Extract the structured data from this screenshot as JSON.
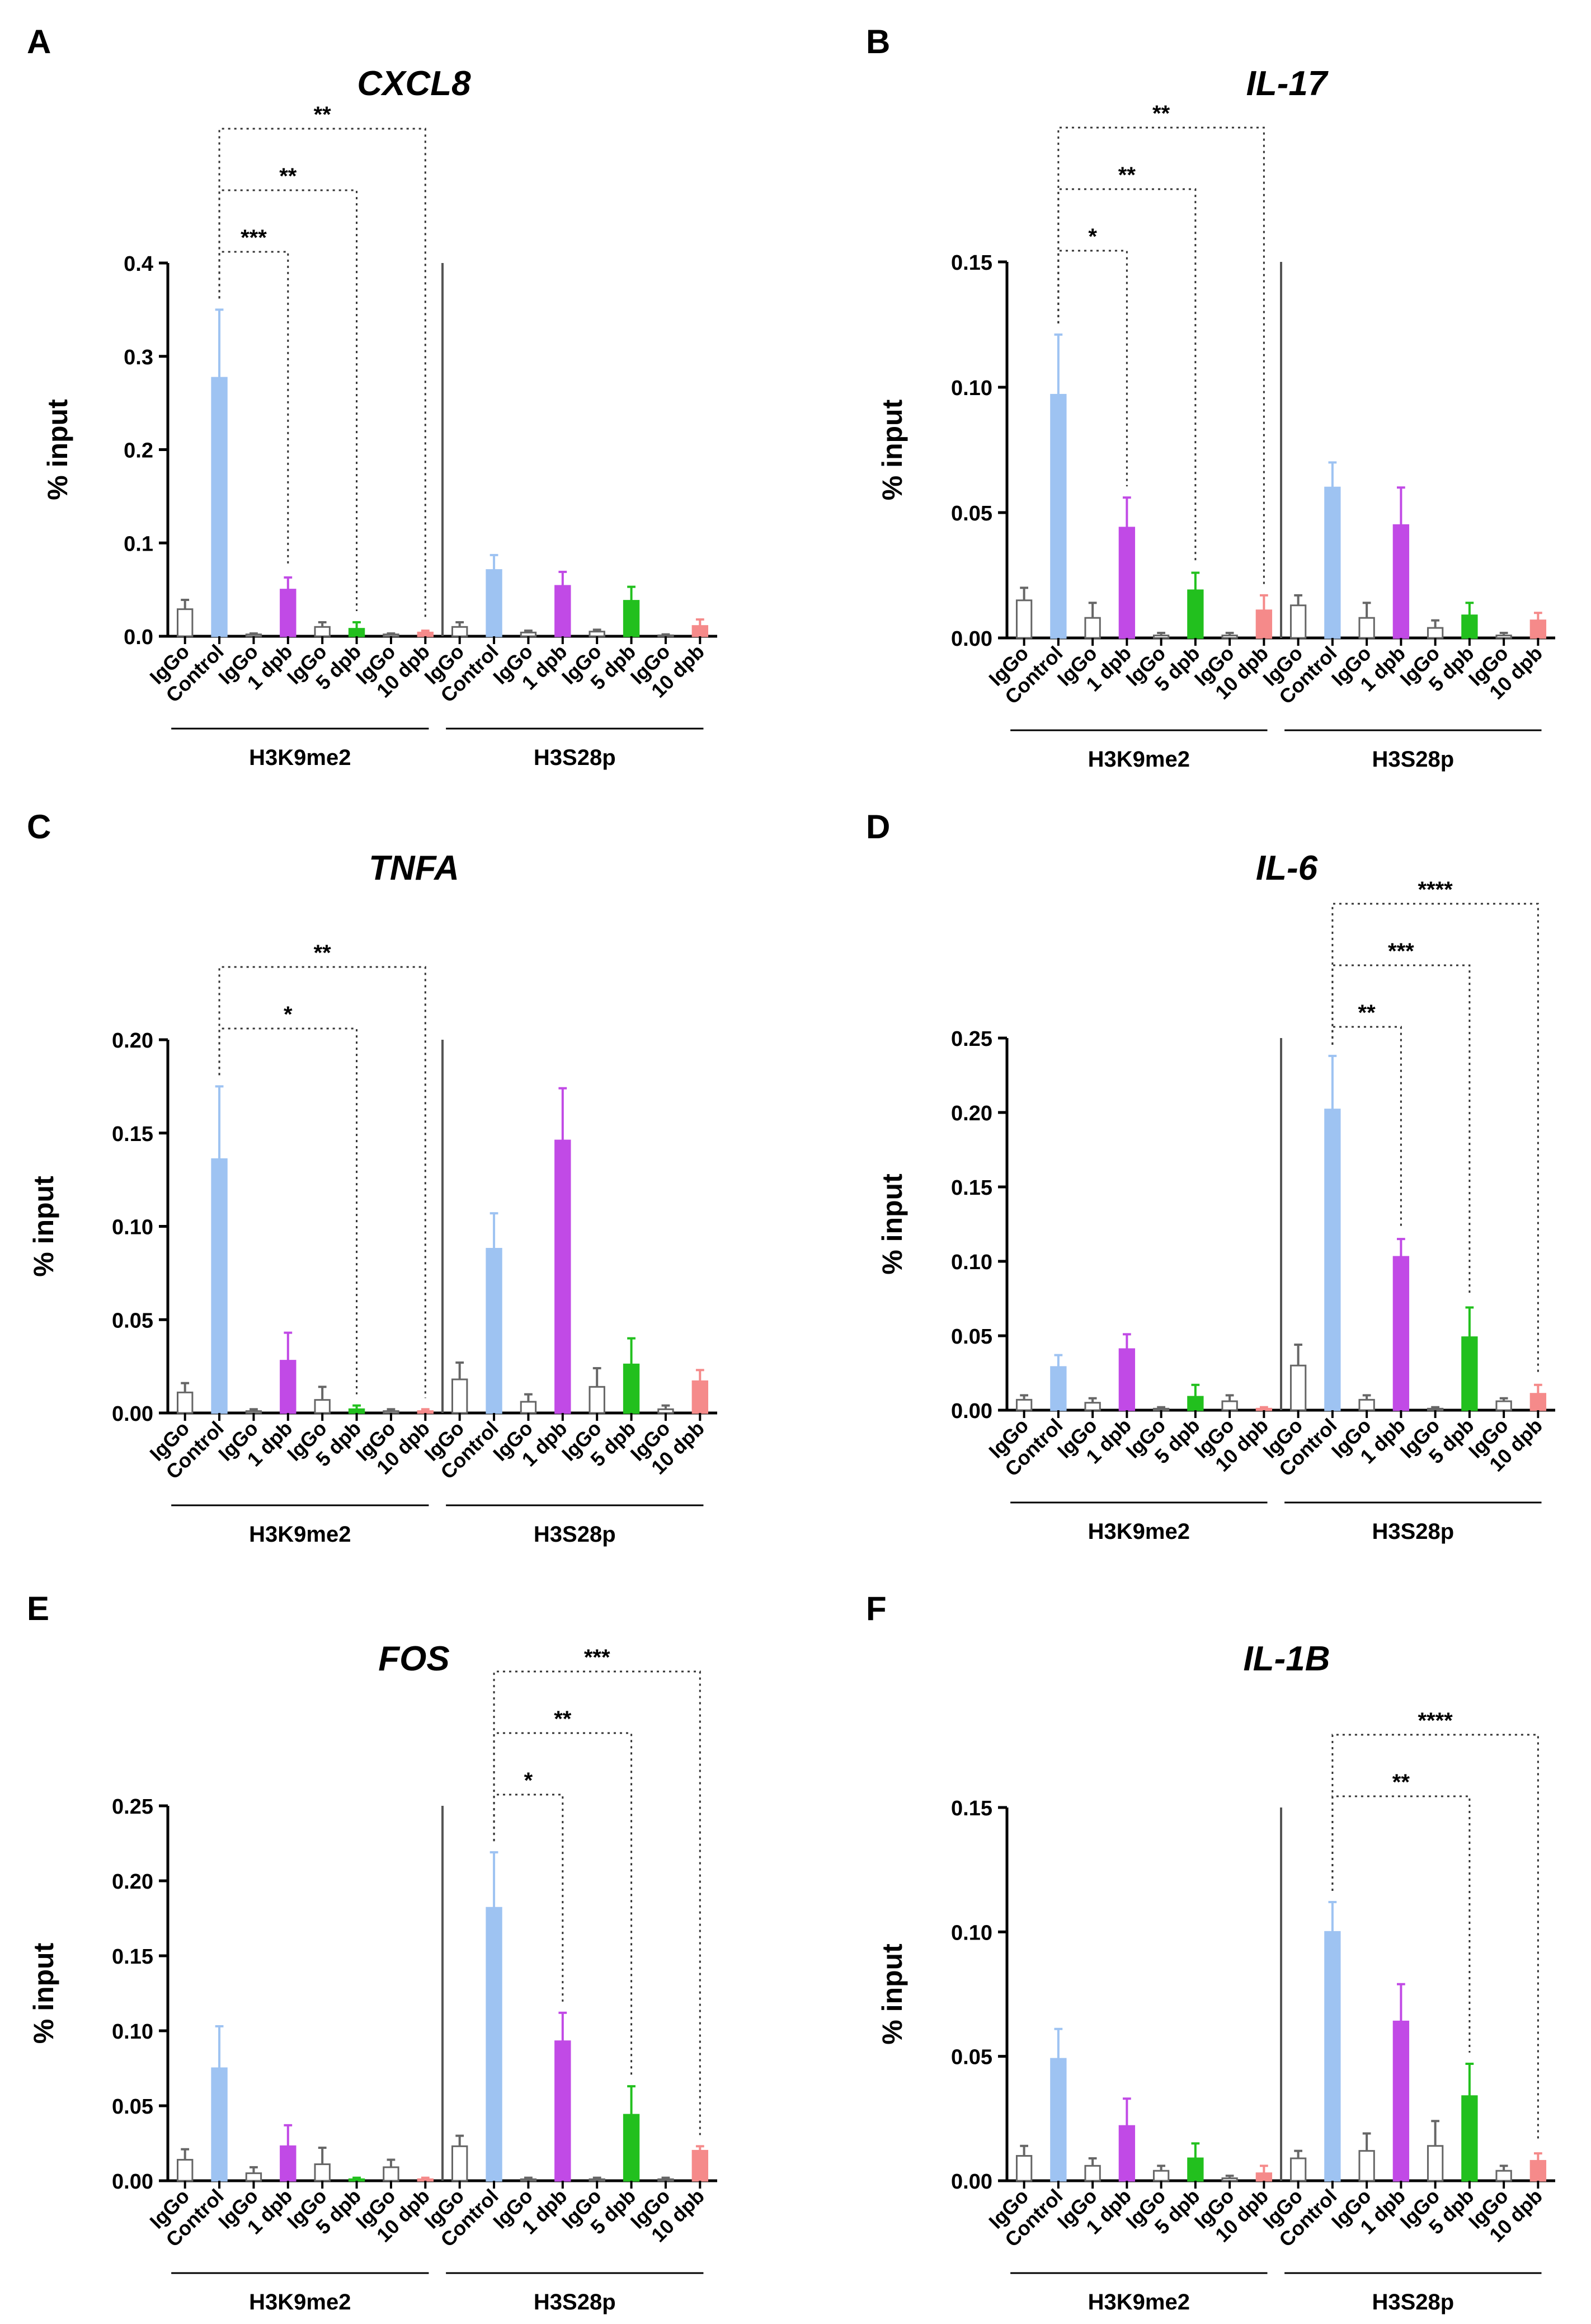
{
  "figure": {
    "category_labels": [
      [
        "IgGo",
        "Control"
      ],
      [
        "IgGo",
        "1 dpb"
      ],
      [
        "IgGo",
        "5 dpb"
      ],
      [
        "IgGo",
        "10 dpb"
      ],
      [
        "IgGo",
        "Control"
      ],
      [
        "IgGo",
        "1 dpb"
      ],
      [
        "IgGo",
        "5 dpb"
      ],
      [
        "IgGo",
        "10 dpb"
      ]
    ],
    "colors": {
      "control": "#9ec3f2",
      "dpb1": "#c14ae6",
      "dpb5": "#22c01e",
      "dpb10": "#f58a8a",
      "igg": "#ffffff",
      "axis": "#000000"
    }
  },
  "chart_data": [
    {
      "panel": "A",
      "title": "CXCL8",
      "type": "bar",
      "ylabel": "% input",
      "ylim": [
        0,
        0.4
      ],
      "yticks": [
        "0.0",
        "0.1",
        "0.2",
        "0.3",
        "0.4"
      ],
      "groups": [
        "H3K9me2",
        "H3S28p"
      ],
      "series": [
        {
          "name": "H3K9me2",
          "values": [
            0.029,
            0.277,
            0.002,
            0.05,
            0.01,
            0.008,
            0.002,
            0.004
          ],
          "errors": [
            0.01,
            0.073,
            0.001,
            0.013,
            0.005,
            0.007,
            0.001,
            0.002
          ]
        },
        {
          "name": "H3S28p",
          "values": [
            0.01,
            0.071,
            0.004,
            0.054,
            0.005,
            0.038,
            0.001,
            0.011
          ],
          "errors": [
            0.005,
            0.016,
            0.002,
            0.015,
            0.002,
            0.015,
            0.001,
            0.007
          ]
        }
      ],
      "significance": [
        {
          "group": 0,
          "to": "1 dpb",
          "label": "***"
        },
        {
          "group": 0,
          "to": "5 dpb",
          "label": "**"
        },
        {
          "group": 0,
          "to": "10 dpb",
          "label": "**"
        }
      ]
    },
    {
      "panel": "B",
      "title": "IL-17",
      "type": "bar",
      "ylabel": "% input",
      "ylim": [
        0,
        0.15
      ],
      "yticks": [
        "0.00",
        "0.05",
        "0.10",
        "0.15"
      ],
      "groups": [
        "H3K9me2",
        "H3S28p"
      ],
      "series": [
        {
          "name": "H3K9me2",
          "values": [
            0.015,
            0.097,
            0.008,
            0.044,
            0.001,
            0.019,
            0.001,
            0.011
          ],
          "errors": [
            0.005,
            0.024,
            0.006,
            0.012,
            0.001,
            0.007,
            0.001,
            0.006
          ]
        },
        {
          "name": "H3S28p",
          "values": [
            0.013,
            0.06,
            0.008,
            0.045,
            0.004,
            0.009,
            0.001,
            0.007
          ],
          "errors": [
            0.004,
            0.01,
            0.006,
            0.015,
            0.003,
            0.005,
            0.001,
            0.003
          ]
        }
      ],
      "significance": [
        {
          "group": 0,
          "to": "1 dpb",
          "label": "*"
        },
        {
          "group": 0,
          "to": "5 dpb",
          "label": "**"
        },
        {
          "group": 0,
          "to": "10 dpb",
          "label": "**"
        }
      ]
    },
    {
      "panel": "C",
      "title": "TNFA",
      "type": "bar",
      "ylabel": "% input",
      "ylim": [
        0,
        0.2
      ],
      "yticks": [
        "0.00",
        "0.05",
        "0.10",
        "0.15",
        "0.20"
      ],
      "groups": [
        "H3K9me2",
        "H3S28p"
      ],
      "series": [
        {
          "name": "H3K9me2",
          "values": [
            0.011,
            0.136,
            0.001,
            0.028,
            0.007,
            0.002,
            0.001,
            0.001
          ],
          "errors": [
            0.005,
            0.039,
            0.001,
            0.015,
            0.007,
            0.002,
            0.001,
            0.001
          ]
        },
        {
          "name": "H3S28p",
          "values": [
            0.018,
            0.088,
            0.006,
            0.146,
            0.014,
            0.026,
            0.002,
            0.017
          ],
          "errors": [
            0.009,
            0.019,
            0.004,
            0.028,
            0.01,
            0.014,
            0.002,
            0.006
          ]
        }
      ],
      "significance": [
        {
          "group": 0,
          "to": "5 dpb",
          "label": "*"
        },
        {
          "group": 0,
          "to": "10 dpb",
          "label": "**"
        }
      ]
    },
    {
      "panel": "D",
      "title": "IL-6",
      "type": "bar",
      "ylabel": "% input",
      "ylim": [
        0,
        0.25
      ],
      "yticks": [
        "0.00",
        "0.05",
        "0.10",
        "0.15",
        "0.20",
        "0.25"
      ],
      "groups": [
        "H3K9me2",
        "H3S28p"
      ],
      "series": [
        {
          "name": "H3K9me2",
          "values": [
            0.007,
            0.029,
            0.005,
            0.041,
            0.001,
            0.009,
            0.006,
            0.001
          ],
          "errors": [
            0.003,
            0.008,
            0.003,
            0.01,
            0.001,
            0.008,
            0.004,
            0.001
          ]
        },
        {
          "name": "H3S28p",
          "values": [
            0.03,
            0.202,
            0.007,
            0.103,
            0.001,
            0.049,
            0.006,
            0.011
          ],
          "errors": [
            0.014,
            0.036,
            0.003,
            0.012,
            0.001,
            0.02,
            0.002,
            0.006
          ]
        }
      ],
      "significance": [
        {
          "group": 1,
          "to": "1 dpb",
          "label": "**"
        },
        {
          "group": 1,
          "to": "5 dpb",
          "label": "***"
        },
        {
          "group": 1,
          "to": "10 dpb",
          "label": "****"
        }
      ]
    },
    {
      "panel": "E",
      "title": "FOS",
      "type": "bar",
      "ylabel": "% input",
      "ylim": [
        0,
        0.25
      ],
      "yticks": [
        "0.00",
        "0.05",
        "0.10",
        "0.15",
        "0.20",
        "0.25"
      ],
      "groups": [
        "H3K9me2",
        "H3S28p"
      ],
      "series": [
        {
          "name": "H3K9me2",
          "values": [
            0.014,
            0.075,
            0.005,
            0.023,
            0.011,
            0.001,
            0.009,
            0.001
          ],
          "errors": [
            0.007,
            0.028,
            0.004,
            0.014,
            0.011,
            0.001,
            0.005,
            0.001
          ]
        },
        {
          "name": "H3S28p",
          "values": [
            0.023,
            0.182,
            0.001,
            0.093,
            0.001,
            0.044,
            0.001,
            0.02
          ],
          "errors": [
            0.007,
            0.037,
            0.001,
            0.019,
            0.001,
            0.019,
            0.001,
            0.003
          ]
        }
      ],
      "significance": [
        {
          "group": 1,
          "to": "1 dpb",
          "label": "*"
        },
        {
          "group": 1,
          "to": "5 dpb",
          "label": "**"
        },
        {
          "group": 1,
          "to": "10 dpb",
          "label": "***"
        }
      ]
    },
    {
      "panel": "F",
      "title": "IL-1B",
      "type": "bar",
      "ylabel": "% input",
      "ylim": [
        0,
        0.15
      ],
      "yticks": [
        "0.00",
        "0.05",
        "0.10",
        "0.15"
      ],
      "groups": [
        "H3K9me2",
        "H3S28p"
      ],
      "series": [
        {
          "name": "H3K9me2",
          "values": [
            0.01,
            0.049,
            0.006,
            0.022,
            0.004,
            0.009,
            0.001,
            0.003
          ],
          "errors": [
            0.004,
            0.012,
            0.003,
            0.011,
            0.002,
            0.006,
            0.001,
            0.003
          ]
        },
        {
          "name": "H3S28p",
          "values": [
            0.009,
            0.1,
            0.012,
            0.064,
            0.014,
            0.034,
            0.004,
            0.008
          ],
          "errors": [
            0.003,
            0.012,
            0.007,
            0.015,
            0.01,
            0.013,
            0.002,
            0.003
          ]
        }
      ],
      "significance": [
        {
          "group": 1,
          "to": "5 dpb",
          "label": "**"
        },
        {
          "group": 1,
          "to": "10 dpb",
          "label": "****"
        }
      ]
    }
  ]
}
